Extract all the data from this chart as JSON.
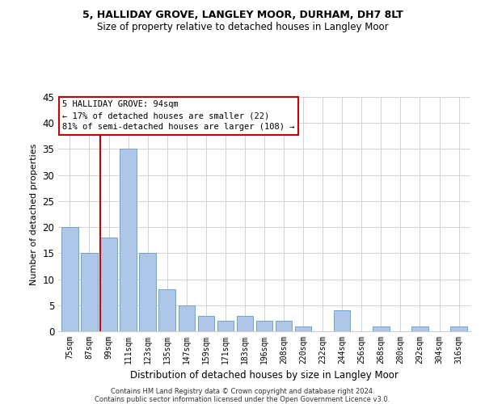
{
  "title1": "5, HALLIDAY GROVE, LANGLEY MOOR, DURHAM, DH7 8LT",
  "title2": "Size of property relative to detached houses in Langley Moor",
  "xlabel": "Distribution of detached houses by size in Langley Moor",
  "ylabel": "Number of detached properties",
  "categories": [
    "75sqm",
    "87sqm",
    "99sqm",
    "111sqm",
    "123sqm",
    "135sqm",
    "147sqm",
    "159sqm",
    "171sqm",
    "183sqm",
    "196sqm",
    "208sqm",
    "220sqm",
    "232sqm",
    "244sqm",
    "256sqm",
    "268sqm",
    "280sqm",
    "292sqm",
    "304sqm",
    "316sqm"
  ],
  "values": [
    20,
    15,
    18,
    35,
    15,
    8,
    5,
    3,
    2,
    3,
    2,
    2,
    1,
    0,
    4,
    0,
    1,
    0,
    1,
    0,
    1
  ],
  "bar_color": "#aec6e8",
  "bar_edge_color": "#5b9bd5",
  "vline_position": 1.58,
  "ylim": [
    0,
    45
  ],
  "yticks": [
    0,
    5,
    10,
    15,
    20,
    25,
    30,
    35,
    40,
    45
  ],
  "annotation_title": "5 HALLIDAY GROVE: 94sqm",
  "annotation_line1": "← 17% of detached houses are smaller (22)",
  "annotation_line2": "81% of semi-detached houses are larger (108) →",
  "annotation_box_color": "#ffffff",
  "annotation_border_color": "#cc0000",
  "vline_color": "#cc0000",
  "footnote1": "Contains HM Land Registry data © Crown copyright and database right 2024.",
  "footnote2": "Contains public sector information licensed under the Open Government Licence v3.0.",
  "title1_fontsize": 9,
  "title2_fontsize": 8.5,
  "ylabel_fontsize": 8,
  "xlabel_fontsize": 8.5,
  "annot_fontsize": 7.5,
  "tick_fontsize": 7,
  "footnote_fontsize": 6
}
